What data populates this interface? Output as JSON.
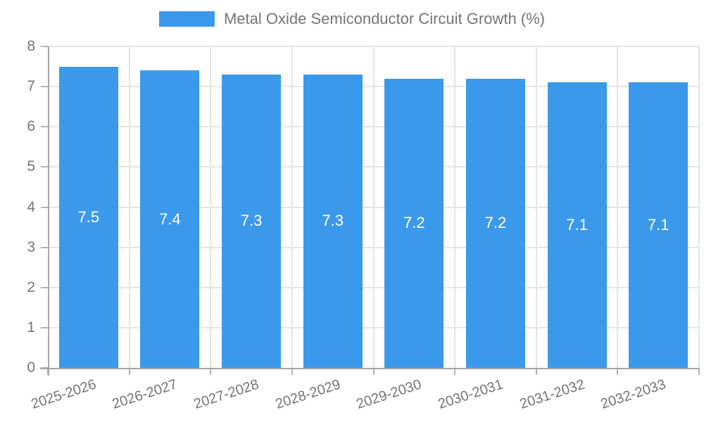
{
  "legend": {
    "label": "Metal Oxide Semiconductor Circuit Growth (%)"
  },
  "chart_data": {
    "type": "bar",
    "title": "Metal Oxide Semiconductor Circuit Growth (%)",
    "categories": [
      "2025-2026",
      "2026-2027",
      "2027-2028",
      "2028-2029",
      "2029-2030",
      "2030-2031",
      "2031-2032",
      "2032-2033"
    ],
    "values": [
      7.5,
      7.4,
      7.3,
      7.3,
      7.2,
      7.2,
      7.1,
      7.1
    ],
    "bar_labels": [
      "7.5",
      "7.4",
      "7.3",
      "7.3",
      "7.2",
      "7.2",
      "7.1",
      "7.1"
    ],
    "xlabel": "",
    "ylabel": "",
    "ylim": [
      0,
      8
    ],
    "ytick_step": 1,
    "ytick_labels": [
      "0",
      "1",
      "2",
      "3",
      "4",
      "5",
      "6",
      "7",
      "8"
    ],
    "grid": true,
    "legend_position": "top-center",
    "x_label_rotation_deg": -18,
    "colors": {
      "bar": "#3B99EC",
      "bar_value_label": "#ffffff",
      "axis_text": "#757575",
      "gridline": "#e5e5e5",
      "axis_line": "#a6a6a6",
      "tick": "#b3b3b3",
      "background": "#ffffff"
    }
  }
}
